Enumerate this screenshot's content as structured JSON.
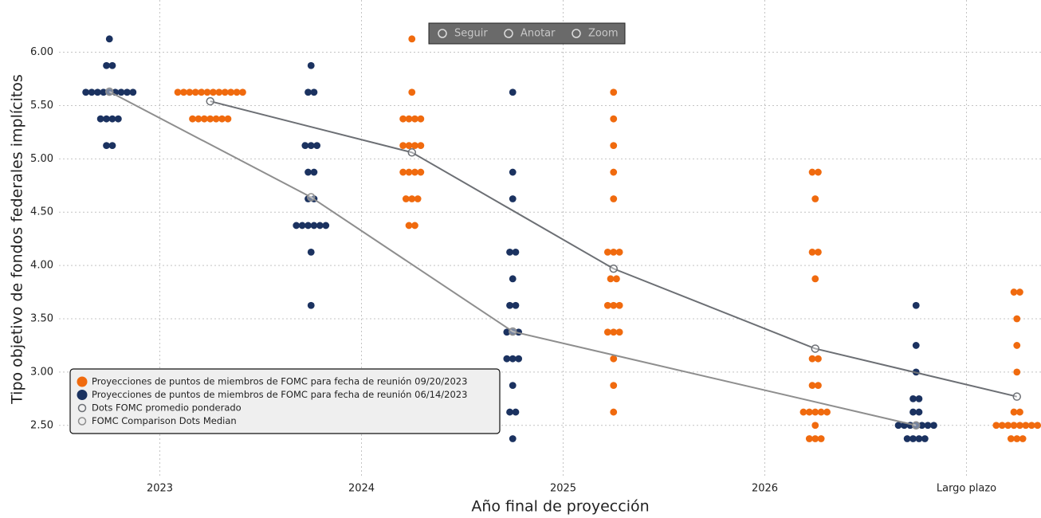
{
  "chart_data": {
    "type": "dot-plot",
    "x_label": "Año final de proyección",
    "y_label": "Tipo objetivo de fondos federales implícitos",
    "categories": [
      "2023",
      "2024",
      "2025",
      "2026",
      "Largo plazo"
    ],
    "ylim": [
      2.02,
      6.49
    ],
    "yticks": [
      {
        "value": 2.5,
        "label": "2.50"
      },
      {
        "value": 3,
        "label": "3.00"
      },
      {
        "value": 3.5,
        "label": "3.50"
      },
      {
        "value": 4,
        "label": "4.00"
      },
      {
        "value": 4.5,
        "label": "4.50"
      },
      {
        "value": 5,
        "label": "5.00"
      },
      {
        "value": 5.5,
        "label": "5.50"
      },
      {
        "value": 6,
        "label": "6.00"
      }
    ],
    "grid": true,
    "legend": "bottom-left",
    "toolbar": [
      "Seguir",
      "Anotar",
      "Zoom"
    ],
    "series": [
      {
        "name": "Proyecciones de puntos de miembros de FOMC para fecha de reunión 09/20/2023",
        "type": "dot",
        "color": "#f06a0e",
        "values": [
          [
            5.375,
            5.375,
            5.375,
            5.375,
            5.375,
            5.375,
            5.375,
            5.625,
            5.625,
            5.625,
            5.625,
            5.625,
            5.625,
            5.625,
            5.625,
            5.625,
            5.625,
            5.625,
            5.625
          ],
          [
            4.375,
            4.375,
            4.625,
            4.625,
            4.625,
            4.875,
            4.875,
            4.875,
            4.875,
            5.125,
            5.125,
            5.125,
            5.125,
            5.375,
            5.375,
            5.375,
            5.375,
            5.625,
            6.125
          ],
          [
            2.625,
            2.875,
            3.125,
            3.375,
            3.375,
            3.375,
            3.625,
            3.625,
            3.625,
            3.875,
            3.875,
            4.125,
            4.125,
            4.125,
            4.625,
            4.875,
            5.125,
            5.375,
            5.625
          ],
          [
            2.375,
            2.375,
            2.375,
            2.5,
            2.625,
            2.625,
            2.625,
            2.625,
            2.625,
            2.875,
            2.875,
            3.125,
            3.125,
            3.875,
            4.125,
            4.125,
            4.625,
            4.875,
            4.875
          ],
          [
            2.375,
            2.375,
            2.375,
            2.5,
            2.5,
            2.5,
            2.5,
            2.5,
            2.5,
            2.5,
            2.5,
            2.625,
            2.625,
            3,
            3.25,
            3.5,
            3.75,
            3.75
          ]
        ]
      },
      {
        "name": "Proyecciones de puntos de miembros de FOMC para fecha de reunión 06/14/2023",
        "type": "dot",
        "color": "#1b3260",
        "values": [
          [
            5.125,
            5.125,
            5.375,
            5.375,
            5.375,
            5.375,
            5.625,
            5.625,
            5.625,
            5.625,
            5.625,
            5.625,
            5.625,
            5.625,
            5.625,
            5.875,
            5.875,
            6.125
          ],
          [
            3.625,
            4.125,
            4.375,
            4.375,
            4.375,
            4.375,
            4.375,
            4.375,
            4.625,
            4.625,
            4.875,
            4.875,
            5.125,
            5.125,
            5.125,
            5.625,
            5.625,
            5.875
          ],
          [
            2.375,
            2.625,
            2.625,
            2.875,
            3.125,
            3.125,
            3.125,
            3.375,
            3.375,
            3.375,
            3.625,
            3.625,
            3.875,
            4.125,
            4.125,
            4.625,
            4.875,
            5.625
          ],
          [],
          [
            2.375,
            2.375,
            2.375,
            2.375,
            2.5,
            2.5,
            2.5,
            2.5,
            2.5,
            2.5,
            2.5,
            2.625,
            2.625,
            2.75,
            2.75,
            3,
            3.25,
            3.625
          ]
        ]
      },
      {
        "name": "Dots FOMC promedio ponderado",
        "type": "line",
        "color": "#6c6f74",
        "x": [
          "2023",
          "2024",
          "2025",
          "2026",
          "Largo plazo"
        ],
        "values": [
          5.54,
          5.06,
          3.97,
          3.22,
          2.77
        ]
      },
      {
        "name": "FOMC Comparison Dots Median",
        "type": "line",
        "color": "#8e8e8e",
        "x": [
          "2023",
          "2024",
          "2025",
          "Largo plazo"
        ],
        "values": [
          5.63,
          4.64,
          3.38,
          2.5
        ]
      }
    ]
  }
}
